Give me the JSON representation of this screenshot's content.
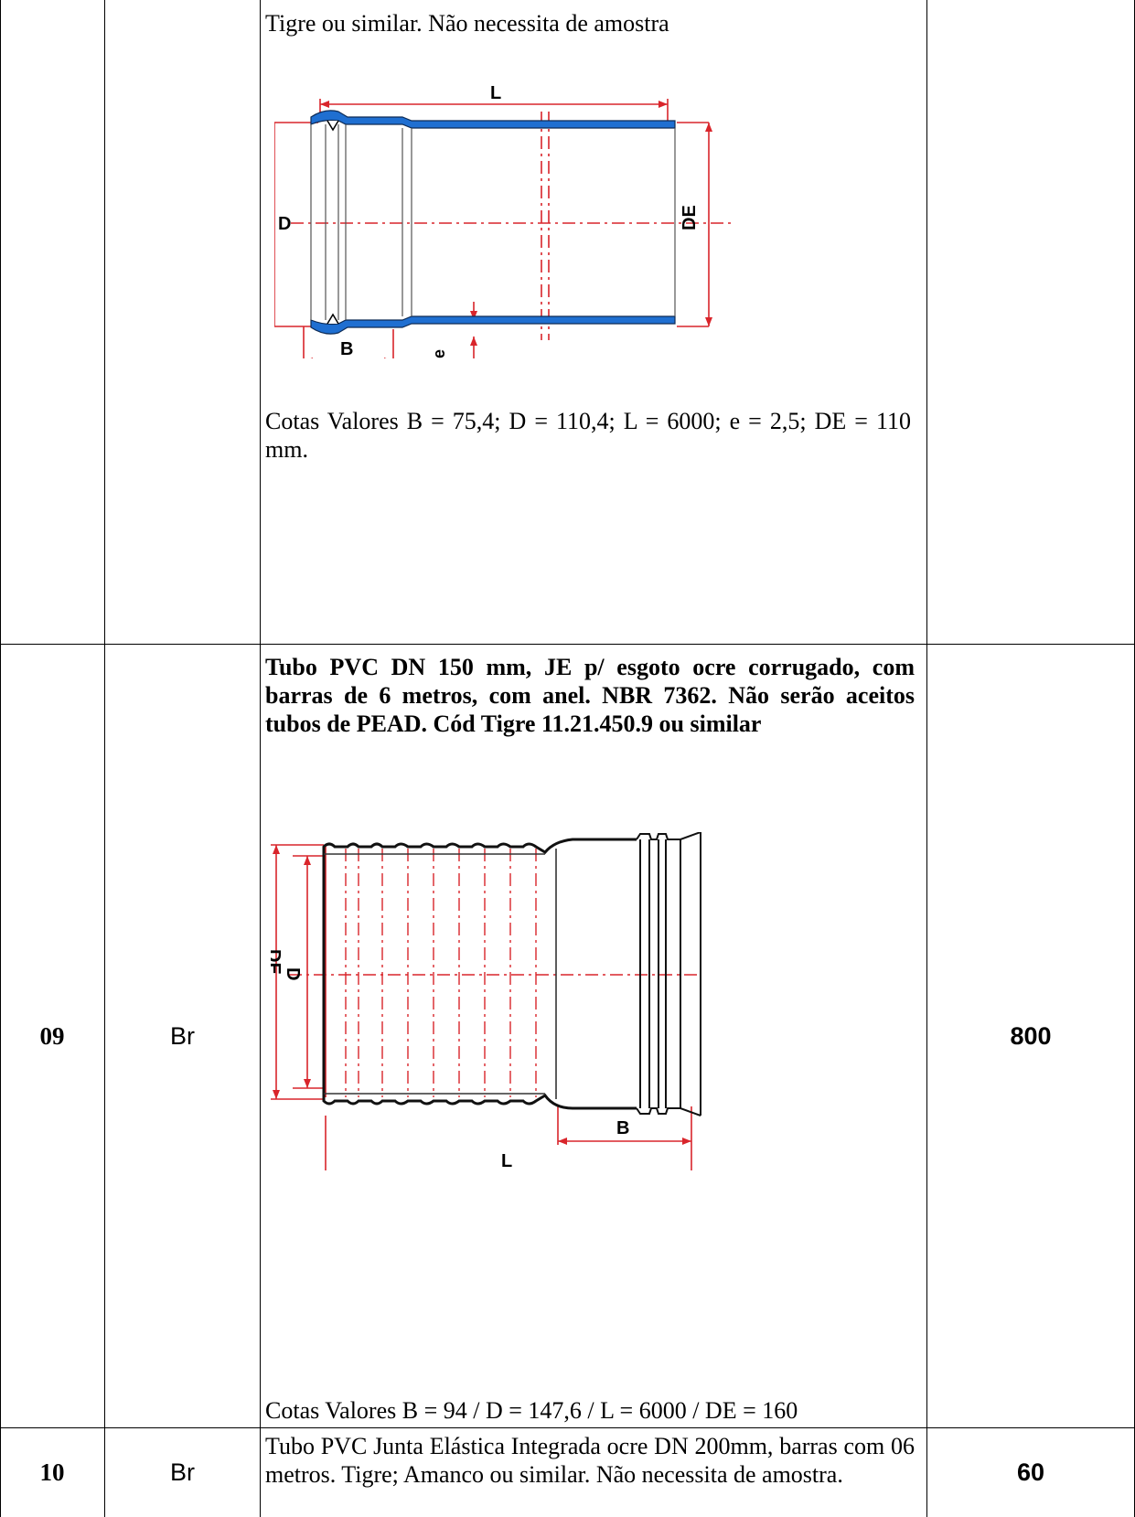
{
  "row_prev": {
    "description_top": "Tigre ou similar. Não necessita de amostra",
    "diagram_labels": {
      "L": "L",
      "D": "D",
      "DE": "DE",
      "B": "B",
      "e": "e"
    },
    "cotas": "Cotas Valores B = 75,4; D = 110,4; L = 6000; e = 2,5; DE = 110 mm."
  },
  "row_09": {
    "item": "09",
    "unit": "Br",
    "description": "Tubo PVC DN 150 mm, JE p/ esgoto ocre corrugado, com barras de 6 metros, com anel. NBR 7362. Não serão aceitos tubos de PEAD. Cód Tigre 11.21.450.9 ou similar",
    "diagram_labels": {
      "D": "D",
      "DE": "DE",
      "B": "B",
      "L": "L"
    },
    "cotas": "Cotas Valores B = 94 / D = 147,6 / L = 6000 / DE = 160",
    "quantity": "800"
  },
  "row_10": {
    "item": "10",
    "unit": "Br",
    "description": "Tubo PVC Junta Elástica Integrada ocre DN 200mm, barras com 06 metros.  Tigre; Amanco  ou similar. Não necessita de amostra.",
    "quantity": "60"
  },
  "colors": {
    "pipe_blue": "#1f6fd1",
    "dim_red": "#d9252b",
    "line": "#000000"
  }
}
